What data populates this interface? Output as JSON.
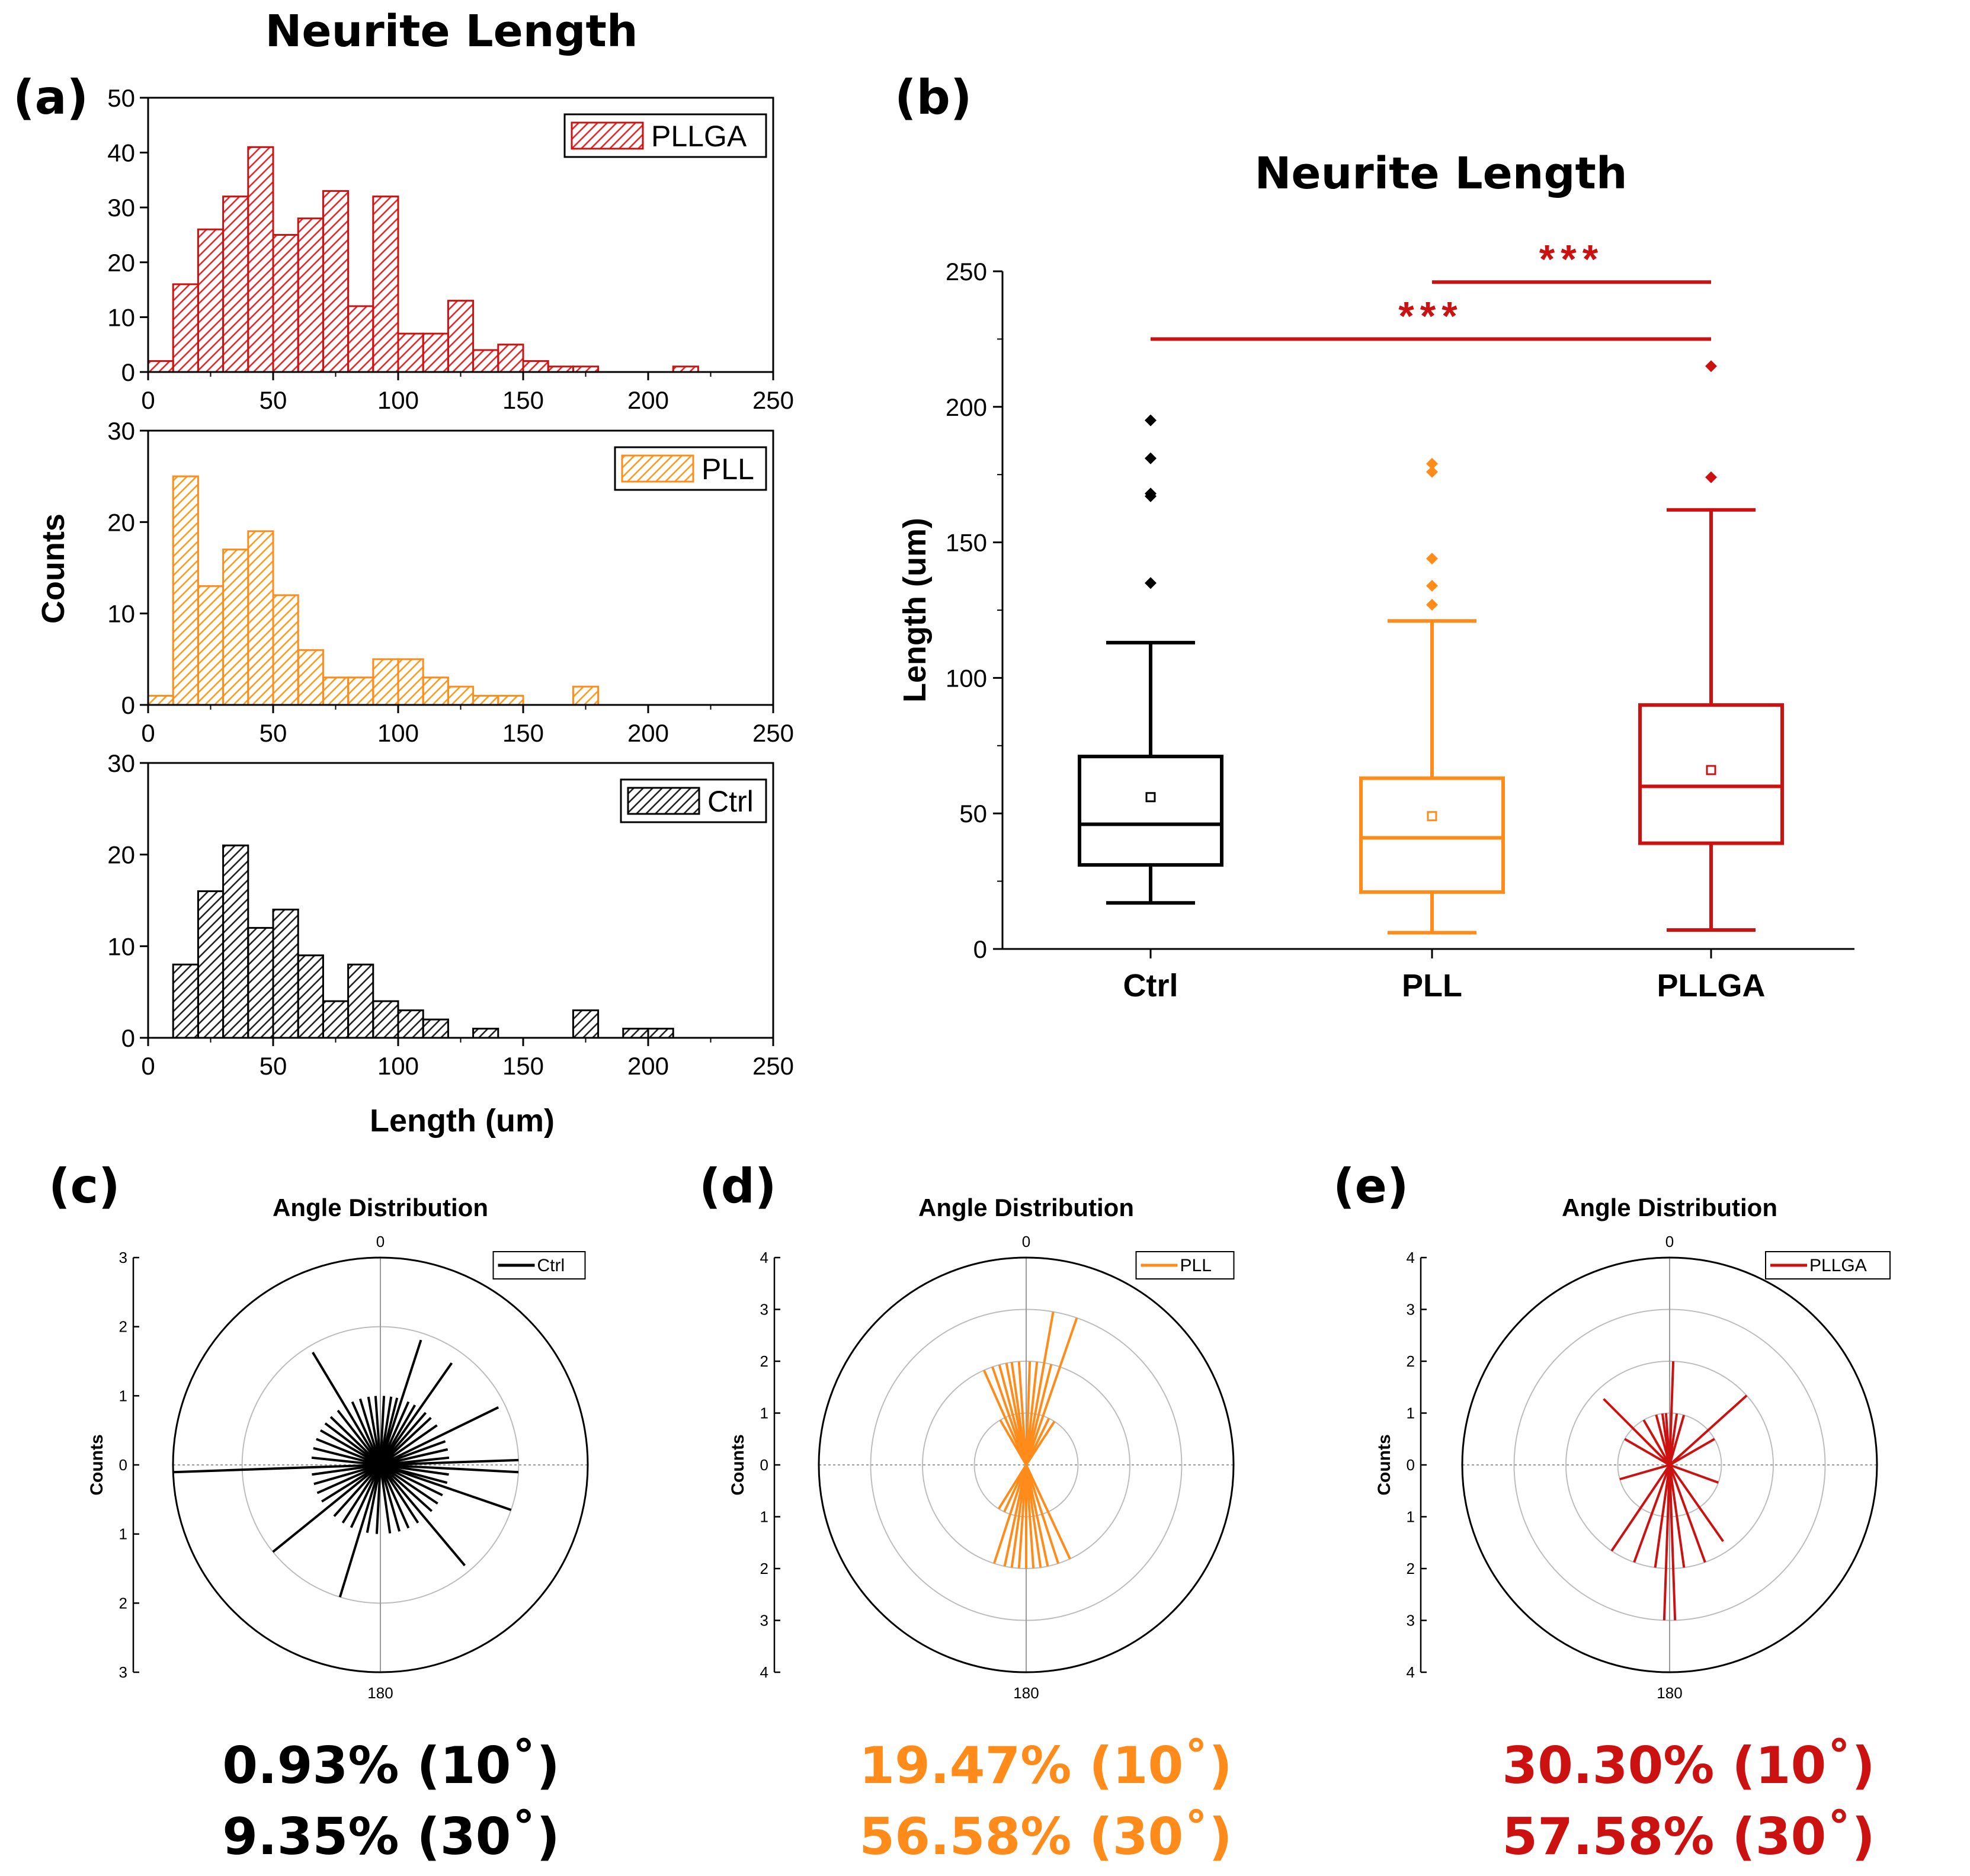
{
  "page_title": "Neurite Length",
  "panels": {
    "a": {
      "letter": "(a)",
      "y_label": "Counts",
      "x_label": "Length (um)"
    },
    "b": {
      "letter": "(b)"
    },
    "c": {
      "letter": "(c)"
    },
    "d": {
      "letter": "(d)"
    },
    "e": {
      "letter": "(e)"
    }
  },
  "colors": {
    "Ctrl": "#000000",
    "PLL": "#ff8c1a",
    "PLLGA": "#cc1111",
    "grid": "#bdbdbd"
  },
  "chart_data": [
    {
      "id": "hist_pllga",
      "type": "bar",
      "series": "PLLGA",
      "legend": "PLLGA",
      "legend_position": "top-right",
      "bin_width": 10,
      "bin_start": 0,
      "values": [
        2,
        16,
        26,
        32,
        41,
        25,
        28,
        33,
        12,
        32,
        7,
        7,
        13,
        4,
        5,
        2,
        1,
        1,
        0,
        0,
        0,
        1,
        0,
        0,
        0
      ],
      "xlim": [
        0,
        250
      ],
      "ylim": [
        0,
        50
      ],
      "xticks": [
        "0",
        "50",
        "100",
        "150",
        "200",
        "250"
      ],
      "yticks": [
        "0",
        "10",
        "20",
        "30",
        "40",
        "50"
      ],
      "ytick_values": [
        0,
        10,
        20,
        30,
        40,
        50
      ]
    },
    {
      "id": "hist_pll",
      "type": "bar",
      "series": "PLL",
      "legend": "PLL",
      "legend_position": "top-right",
      "bin_width": 10,
      "bin_start": 0,
      "values": [
        1,
        25,
        13,
        17,
        19,
        12,
        6,
        3,
        3,
        5,
        5,
        3,
        2,
        1,
        1,
        0,
        0,
        2,
        0,
        0,
        0,
        0,
        0,
        0,
        0
      ],
      "xlim": [
        0,
        250
      ],
      "ylim": [
        0,
        30
      ],
      "xticks": [
        "0",
        "50",
        "100",
        "150",
        "200",
        "250"
      ],
      "yticks": [
        "0",
        "10",
        "20",
        "30"
      ],
      "ytick_values": [
        0,
        10,
        20,
        30
      ]
    },
    {
      "id": "hist_ctrl",
      "type": "bar",
      "series": "Ctrl",
      "legend": "Ctrl",
      "legend_position": "top-right",
      "bin_width": 10,
      "bin_start": 0,
      "values": [
        0,
        8,
        16,
        21,
        12,
        14,
        9,
        4,
        8,
        4,
        3,
        2,
        0,
        1,
        0,
        0,
        0,
        3,
        0,
        1,
        1,
        0,
        0,
        0,
        0
      ],
      "xlim": [
        0,
        250
      ],
      "ylim": [
        0,
        30
      ],
      "xticks": [
        "0",
        "50",
        "100",
        "150",
        "200",
        "250"
      ],
      "yticks": [
        "0",
        "10",
        "20",
        "30"
      ],
      "ytick_values": [
        0,
        10,
        20,
        30
      ]
    },
    {
      "id": "boxplot",
      "type": "box",
      "title": "Neurite Length",
      "ylabel": "Length (um)",
      "ylim": [
        0,
        250
      ],
      "yticks": [
        "0",
        "50",
        "100",
        "150",
        "200",
        "250"
      ],
      "ytick_values": [
        0,
        50,
        100,
        150,
        200,
        250
      ],
      "groups": [
        {
          "name": "Ctrl",
          "min": 17,
          "q1": 31,
          "median": 46,
          "q3": 71,
          "max": 113,
          "mean": 56,
          "outliers": [
            135,
            167,
            168,
            181,
            195
          ]
        },
        {
          "name": "PLL",
          "min": 6,
          "q1": 21,
          "median": 41,
          "q3": 63,
          "max": 121,
          "mean": 49,
          "outliers": [
            127,
            134,
            144,
            176,
            179
          ]
        },
        {
          "name": "PLLGA",
          "min": 7,
          "q1": 39,
          "median": 60,
          "q3": 90,
          "max": 162,
          "mean": 66,
          "outliers": [
            174,
            215
          ]
        }
      ],
      "significance": [
        {
          "from": "PLL",
          "to": "PLLGA",
          "label": "***"
        },
        {
          "from": "Ctrl",
          "to": "PLLGA",
          "label": "***"
        }
      ]
    },
    {
      "id": "polar_ctrl",
      "type": "polar",
      "series": "Ctrl",
      "title": "Angle Distribution",
      "ylabel": "Counts",
      "legend": "Ctrl",
      "rmax": 3,
      "rings": [
        2,
        3
      ],
      "axis_ticks": [
        "3",
        "2",
        "1",
        "0",
        "1",
        "2",
        "3"
      ],
      "top_label": "0",
      "bottom_label": "180",
      "spokes": [
        {
          "angle": 3,
          "r": 1
        },
        {
          "angle": 9,
          "r": 1
        },
        {
          "angle": 14,
          "r": 1
        },
        {
          "angle": 18,
          "r": 1.9
        },
        {
          "angle": 24,
          "r": 1
        },
        {
          "angle": 30,
          "r": 1
        },
        {
          "angle": 35,
          "r": 1.8
        },
        {
          "angle": 41,
          "r": 1
        },
        {
          "angle": 47,
          "r": 1
        },
        {
          "angle": 55,
          "r": 1
        },
        {
          "angle": 64,
          "r": 1.9
        },
        {
          "angle": 70,
          "r": 1
        },
        {
          "angle": 77,
          "r": 1
        },
        {
          "angle": 84,
          "r": 1
        },
        {
          "angle": 88,
          "r": 2.0
        },
        {
          "angle": 93,
          "r": 2.0
        },
        {
          "angle": 98,
          "r": 1
        },
        {
          "angle": 105,
          "r": 1
        },
        {
          "angle": 109,
          "r": 2.0
        },
        {
          "angle": 116,
          "r": 1
        },
        {
          "angle": 124,
          "r": 1
        },
        {
          "angle": 132,
          "r": 1
        },
        {
          "angle": 140,
          "r": 1.9
        },
        {
          "angle": 147,
          "r": 1
        },
        {
          "angle": 156,
          "r": 1
        },
        {
          "angle": 164,
          "r": 1
        },
        {
          "angle": 172,
          "r": 1
        },
        {
          "angle": 183,
          "r": 1
        },
        {
          "angle": 191,
          "r": 1
        },
        {
          "angle": 197,
          "r": 2.0
        },
        {
          "angle": 205,
          "r": 1
        },
        {
          "angle": 213,
          "r": 1
        },
        {
          "angle": 222,
          "r": 1
        },
        {
          "angle": 231,
          "r": 2.0
        },
        {
          "angle": 238,
          "r": 1
        },
        {
          "angle": 246,
          "r": 1
        },
        {
          "angle": 254,
          "r": 1
        },
        {
          "angle": 262,
          "r": 1
        },
        {
          "angle": 268,
          "r": 3.0
        },
        {
          "angle": 276,
          "r": 1
        },
        {
          "angle": 284,
          "r": 1
        },
        {
          "angle": 292,
          "r": 1
        },
        {
          "angle": 300,
          "r": 1
        },
        {
          "angle": 307,
          "r": 1
        },
        {
          "angle": 314,
          "r": 1
        },
        {
          "angle": 322,
          "r": 1
        },
        {
          "angle": 329,
          "r": 1.9
        },
        {
          "angle": 336,
          "r": 1
        },
        {
          "angle": 343,
          "r": 1
        },
        {
          "angle": 350,
          "r": 1
        },
        {
          "angle": 356,
          "r": 1
        }
      ]
    },
    {
      "id": "polar_pll",
      "type": "polar",
      "series": "PLL",
      "title": "Angle Distribution",
      "ylabel": "Counts",
      "legend": "PLL",
      "rmax": 4,
      "rings": [
        1,
        2,
        3,
        4
      ],
      "axis_ticks": [
        "4",
        "3",
        "2",
        "1",
        "0",
        "1",
        "2",
        "3",
        "4"
      ],
      "top_label": "0",
      "bottom_label": "180",
      "spokes": [
        {
          "angle": 2,
          "r": 2
        },
        {
          "angle": 6,
          "r": 2
        },
        {
          "angle": 10,
          "r": 3
        },
        {
          "angle": 14,
          "r": 2
        },
        {
          "angle": 19,
          "r": 3
        },
        {
          "angle": 26,
          "r": 1
        },
        {
          "angle": 33,
          "r": 1
        },
        {
          "angle": 155,
          "r": 2
        },
        {
          "angle": 162,
          "r": 2
        },
        {
          "angle": 168,
          "r": 2
        },
        {
          "angle": 172,
          "r": 2
        },
        {
          "angle": 176,
          "r": 2
        },
        {
          "angle": 180,
          "r": 2
        },
        {
          "angle": 184,
          "r": 2
        },
        {
          "angle": 188,
          "r": 2
        },
        {
          "angle": 192,
          "r": 2
        },
        {
          "angle": 198,
          "r": 2
        },
        {
          "angle": 205,
          "r": 1
        },
        {
          "angle": 212,
          "r": 1
        },
        {
          "angle": 330,
          "r": 1
        },
        {
          "angle": 336,
          "r": 2
        },
        {
          "angle": 341,
          "r": 2
        },
        {
          "angle": 345,
          "r": 2
        },
        {
          "angle": 349,
          "r": 2
        },
        {
          "angle": 352,
          "r": 2
        },
        {
          "angle": 356,
          "r": 2
        }
      ]
    },
    {
      "id": "polar_pllga",
      "type": "polar",
      "series": "PLLGA",
      "title": "Angle Distribution",
      "ylabel": "Counts",
      "legend": "PLLGA",
      "rmax": 4,
      "rings": [
        1,
        2,
        3,
        4
      ],
      "axis_ticks": [
        "4",
        "3",
        "2",
        "1",
        "0",
        "1",
        "2",
        "3",
        "4"
      ],
      "top_label": "0",
      "bottom_label": "180",
      "spokes": [
        {
          "angle": 2,
          "r": 2
        },
        {
          "angle": 8,
          "r": 1
        },
        {
          "angle": 16,
          "r": 1
        },
        {
          "angle": 48,
          "r": 2
        },
        {
          "angle": 60,
          "r": 1
        },
        {
          "angle": 110,
          "r": 1
        },
        {
          "angle": 145,
          "r": 1.8
        },
        {
          "angle": 160,
          "r": 2
        },
        {
          "angle": 172,
          "r": 2
        },
        {
          "angle": 178,
          "r": 3
        },
        {
          "angle": 182,
          "r": 3
        },
        {
          "angle": 188,
          "r": 2
        },
        {
          "angle": 200,
          "r": 2
        },
        {
          "angle": 214,
          "r": 2
        },
        {
          "angle": 254,
          "r": 1
        },
        {
          "angle": 300,
          "r": 1
        },
        {
          "angle": 315,
          "r": 1.8
        },
        {
          "angle": 330,
          "r": 1
        },
        {
          "angle": 345,
          "r": 1
        },
        {
          "angle": 352,
          "r": 1
        },
        {
          "angle": 356,
          "r": 1
        }
      ]
    }
  ],
  "stats": {
    "ctrl": {
      "line1": "0.93% (10˚)",
      "line2": "9.35% (30˚)"
    },
    "pll": {
      "line1": "19.47% (10˚)",
      "line2": "56.58% (30˚)"
    },
    "pllga": {
      "line1": "30.30% (10˚)",
      "line2": "57.58% (30˚)"
    }
  }
}
